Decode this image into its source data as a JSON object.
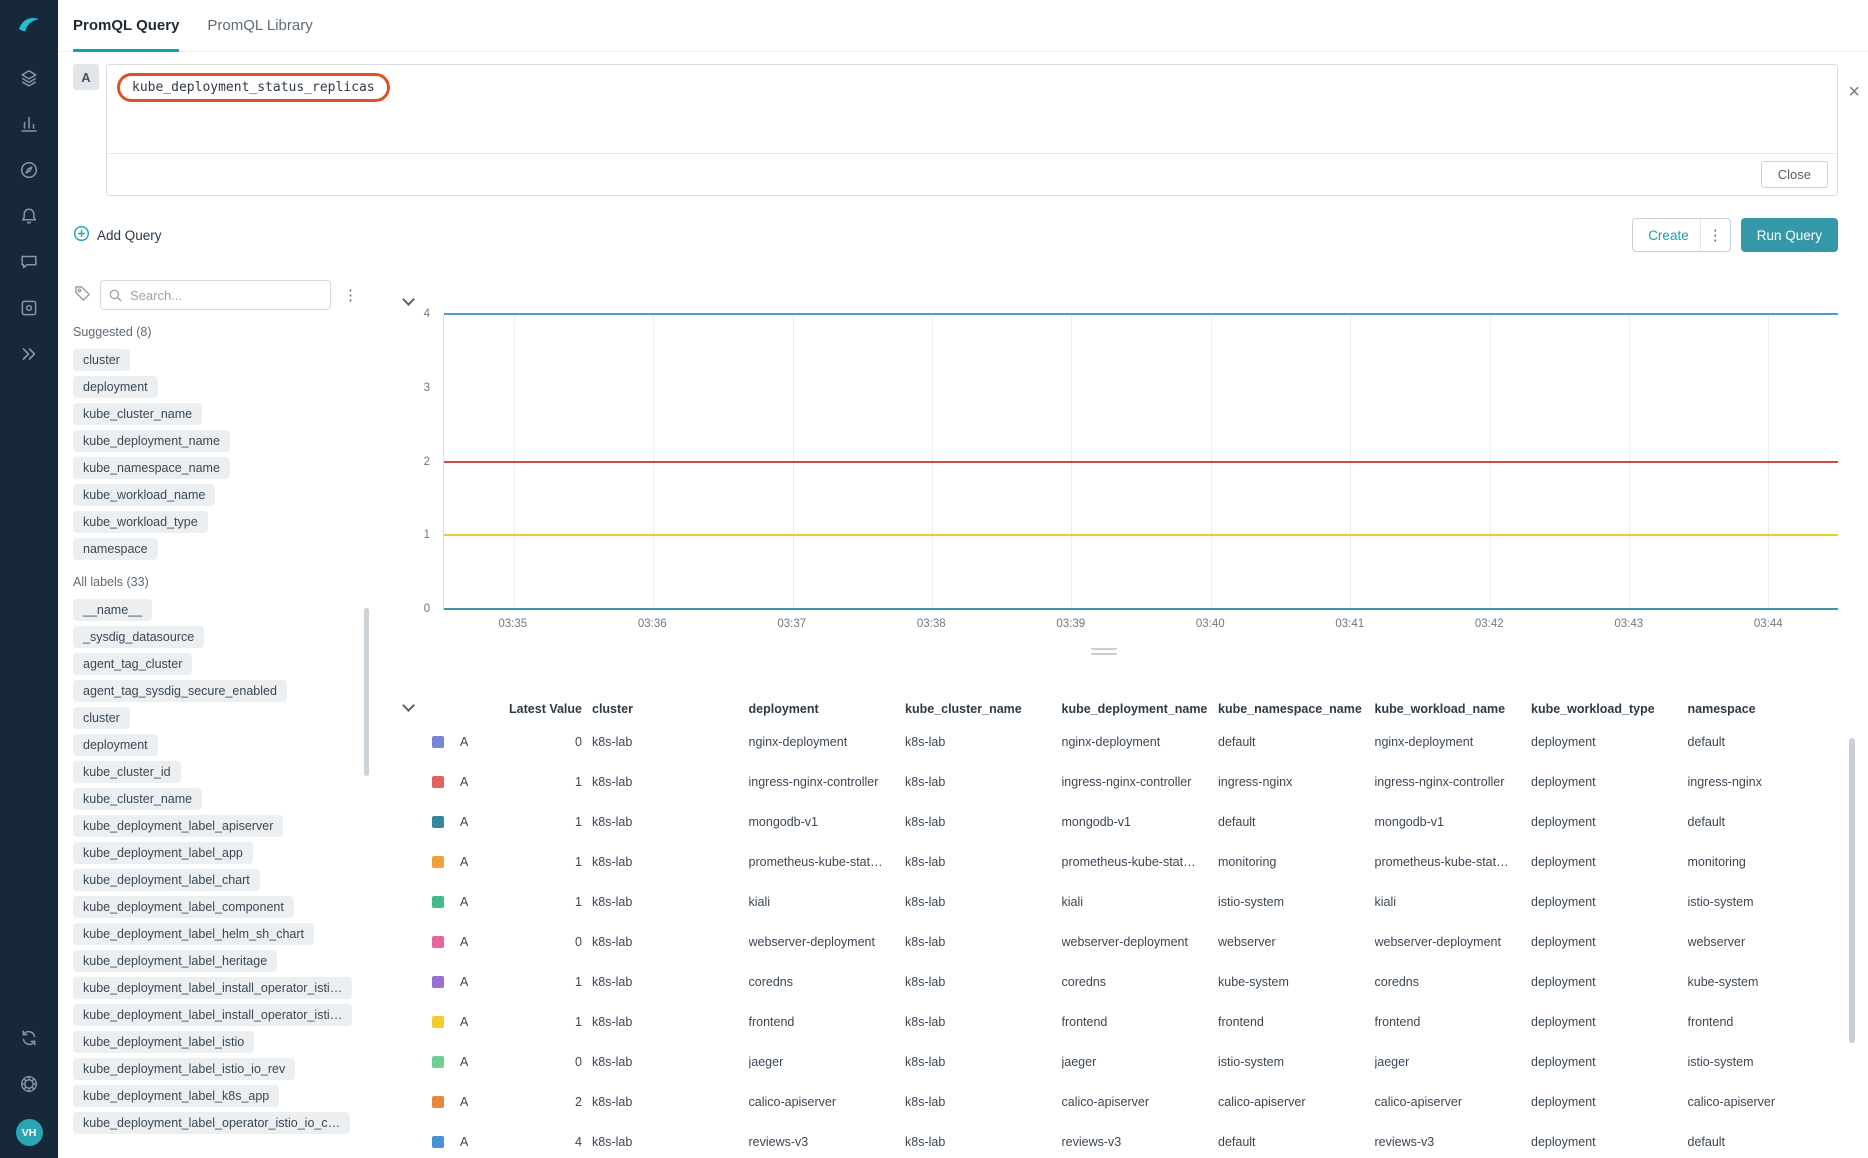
{
  "app": {
    "accent": "#0CA5B5",
    "sidebar_bg": "#16283A",
    "run_button_bg": "#3598A9",
    "annotation_color": "#DB5226"
  },
  "icons": {
    "kebab": "⋮",
    "close_x": "×"
  },
  "sidebar": {
    "avatar_initials": "VH"
  },
  "tabs": {
    "query": "PromQL Query",
    "library": "PromQL Library"
  },
  "editor": {
    "letter": "A",
    "query": "kube_deployment_status_replicas",
    "close_label": "Close"
  },
  "toolbar": {
    "add_query_label": "Add Query",
    "create_label": "Create",
    "run_query_label": "Run Query"
  },
  "labels_panel": {
    "search_placeholder": "Search...",
    "suggested_header": "Suggested (8)",
    "all_header": "All labels (33)",
    "suggested": [
      "cluster",
      "deployment",
      "kube_cluster_name",
      "kube_deployment_name",
      "kube_namespace_name",
      "kube_workload_name",
      "kube_workload_type",
      "namespace"
    ],
    "all": [
      "__name__",
      "_sysdig_datasource",
      "agent_tag_cluster",
      "agent_tag_sysdig_secure_enabled",
      "cluster",
      "deployment",
      "kube_cluster_id",
      "kube_cluster_name",
      "kube_deployment_label_apiserver",
      "kube_deployment_label_app",
      "kube_deployment_label_chart",
      "kube_deployment_label_component",
      "kube_deployment_label_helm_sh_chart",
      "kube_deployment_label_heritage",
      "kube_deployment_label_install_operator_isti…",
      "kube_deployment_label_install_operator_isti…",
      "kube_deployment_label_istio",
      "kube_deployment_label_istio_io_rev",
      "kube_deployment_label_k8s_app",
      "kube_deployment_label_operator_istio_io_c…"
    ]
  },
  "chart_data": {
    "type": "line",
    "x_ticks": [
      "03:35",
      "03:36",
      "03:37",
      "03:38",
      "03:39",
      "03:40",
      "03:41",
      "03:42",
      "03:43",
      "03:44"
    ],
    "y_ticks": [
      0,
      1,
      2,
      3,
      4
    ],
    "ylim": [
      0,
      4
    ],
    "grid": "vertical",
    "series": [
      {
        "value": 4,
        "color": "#4C9FC6"
      },
      {
        "value": 2,
        "color": "#CE4B45"
      },
      {
        "value": 1,
        "color": "#EFC92F"
      },
      {
        "value": 0,
        "color": "#3E93A8"
      }
    ]
  },
  "table": {
    "headers": [
      "Latest Value",
      "cluster",
      "deployment",
      "kube_cluster_name",
      "kube_deployment_name",
      "kube_namespace_name",
      "kube_workload_name",
      "kube_workload_type",
      "namespace"
    ],
    "rows": [
      {
        "color": "#7B83DB",
        "query": "A",
        "value": "0",
        "cells": [
          "k8s-lab",
          "nginx-deployment",
          "k8s-lab",
          "nginx-deployment",
          "default",
          "nginx-deployment",
          "deployment",
          "default"
        ]
      },
      {
        "color": "#E4625B",
        "query": "A",
        "value": "1",
        "cells": [
          "k8s-lab",
          "ingress-nginx-controller",
          "k8s-lab",
          "ingress-nginx-controller",
          "ingress-nginx",
          "ingress-nginx-controller",
          "deployment",
          "ingress-nginx"
        ]
      },
      {
        "color": "#35889B",
        "query": "A",
        "value": "1",
        "cells": [
          "k8s-lab",
          "mongodb-v1",
          "k8s-lab",
          "mongodb-v1",
          "default",
          "mongodb-v1",
          "deployment",
          "default"
        ]
      },
      {
        "color": "#F0A13C",
        "query": "A",
        "value": "1",
        "cells": [
          "k8s-lab",
          "prometheus-kube-stat…",
          "k8s-lab",
          "prometheus-kube-stat…",
          "monitoring",
          "prometheus-kube-stat…",
          "deployment",
          "monitoring"
        ]
      },
      {
        "color": "#46B98C",
        "query": "A",
        "value": "1",
        "cells": [
          "k8s-lab",
          "kiali",
          "k8s-lab",
          "kiali",
          "istio-system",
          "kiali",
          "deployment",
          "istio-system"
        ]
      },
      {
        "color": "#E3679E",
        "query": "A",
        "value": "0",
        "cells": [
          "k8s-lab",
          "webserver-deployment",
          "k8s-lab",
          "webserver-deployment",
          "webserver",
          "webserver-deployment",
          "deployment",
          "webserver"
        ]
      },
      {
        "color": "#9B6FD0",
        "query": "A",
        "value": "1",
        "cells": [
          "k8s-lab",
          "coredns",
          "k8s-lab",
          "coredns",
          "kube-system",
          "coredns",
          "deployment",
          "kube-system"
        ]
      },
      {
        "color": "#F0CE2E",
        "query": "A",
        "value": "1",
        "cells": [
          "k8s-lab",
          "frontend",
          "k8s-lab",
          "frontend",
          "frontend",
          "frontend",
          "deployment",
          "frontend"
        ]
      },
      {
        "color": "#6FCF97",
        "query": "A",
        "value": "0",
        "cells": [
          "k8s-lab",
          "jaeger",
          "k8s-lab",
          "jaeger",
          "istio-system",
          "jaeger",
          "deployment",
          "istio-system"
        ]
      },
      {
        "color": "#E8883A",
        "query": "A",
        "value": "2",
        "cells": [
          "k8s-lab",
          "calico-apiserver",
          "k8s-lab",
          "calico-apiserver",
          "calico-apiserver",
          "calico-apiserver",
          "deployment",
          "calico-apiserver"
        ]
      },
      {
        "color": "#4A90D9",
        "query": "A",
        "value": "4",
        "cells": [
          "k8s-lab",
          "reviews-v3",
          "k8s-lab",
          "reviews-v3",
          "default",
          "reviews-v3",
          "deployment",
          "default"
        ]
      }
    ]
  }
}
